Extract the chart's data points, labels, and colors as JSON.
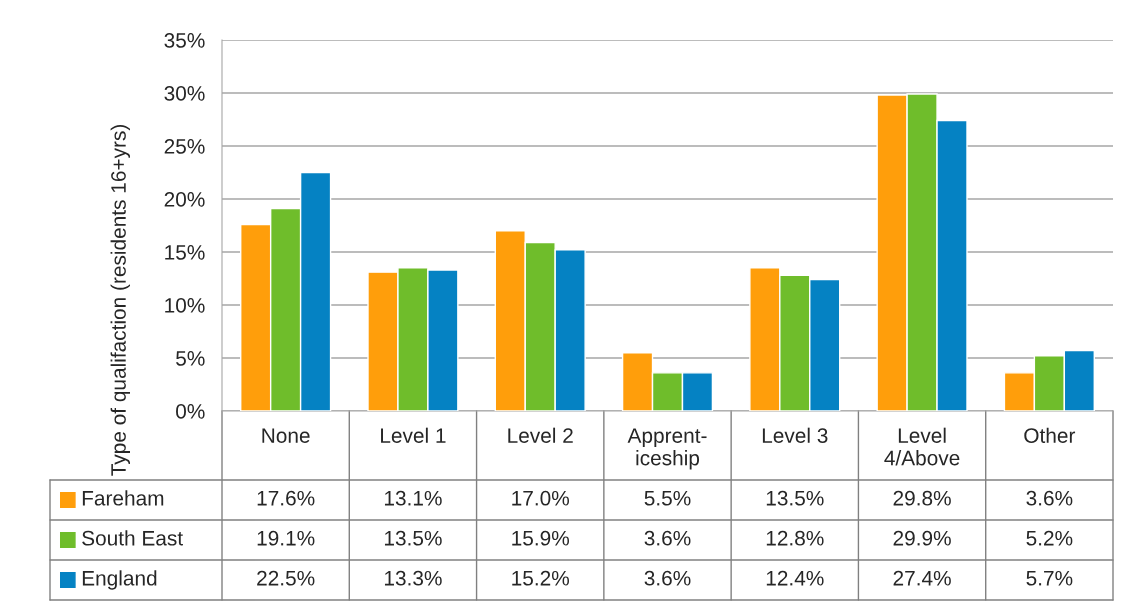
{
  "chart_data": {
    "type": "bar",
    "ylabel": "Type of qualifaction (residents 16+yrs)",
    "categories": [
      "None",
      "Level 1",
      "Level 2",
      "Apprent-\niceship",
      "Level 3",
      "Level\n4/Above",
      "Other"
    ],
    "series": [
      {
        "name": "Fareham",
        "color": "#ff9e0b",
        "values": [
          17.6,
          13.1,
          17.0,
          5.5,
          13.5,
          29.8,
          3.6
        ],
        "value_labels": [
          "17.6%",
          "13.1%",
          "17.0%",
          "5.5%",
          "13.5%",
          "29.8%",
          "3.6%"
        ]
      },
      {
        "name": "South East",
        "color": "#6fbd2b",
        "values": [
          19.1,
          13.5,
          15.9,
          3.6,
          12.8,
          29.9,
          5.2
        ],
        "value_labels": [
          "19.1%",
          "13.5%",
          "15.9%",
          "3.6%",
          "12.8%",
          "29.9%",
          "5.2%"
        ]
      },
      {
        "name": "England",
        "color": "#0582c3",
        "values": [
          22.5,
          13.3,
          15.2,
          3.6,
          12.4,
          27.4,
          5.7
        ],
        "value_labels": [
          "22.5%",
          "13.3%",
          "15.2%",
          "3.6%",
          "12.4%",
          "27.4%",
          "5.7%"
        ]
      }
    ],
    "ylim": [
      0,
      35
    ],
    "yticks": [
      {
        "value": 0,
        "label": "0%"
      },
      {
        "value": 5,
        "label": "5%"
      },
      {
        "value": 10,
        "label": "10%"
      },
      {
        "value": 15,
        "label": "15%"
      },
      {
        "value": 20,
        "label": "20%"
      },
      {
        "value": 25,
        "label": "25%"
      },
      {
        "value": 30,
        "label": "30%"
      },
      {
        "value": 35,
        "label": "35%"
      }
    ],
    "grid": "y",
    "legend": "bottom"
  }
}
